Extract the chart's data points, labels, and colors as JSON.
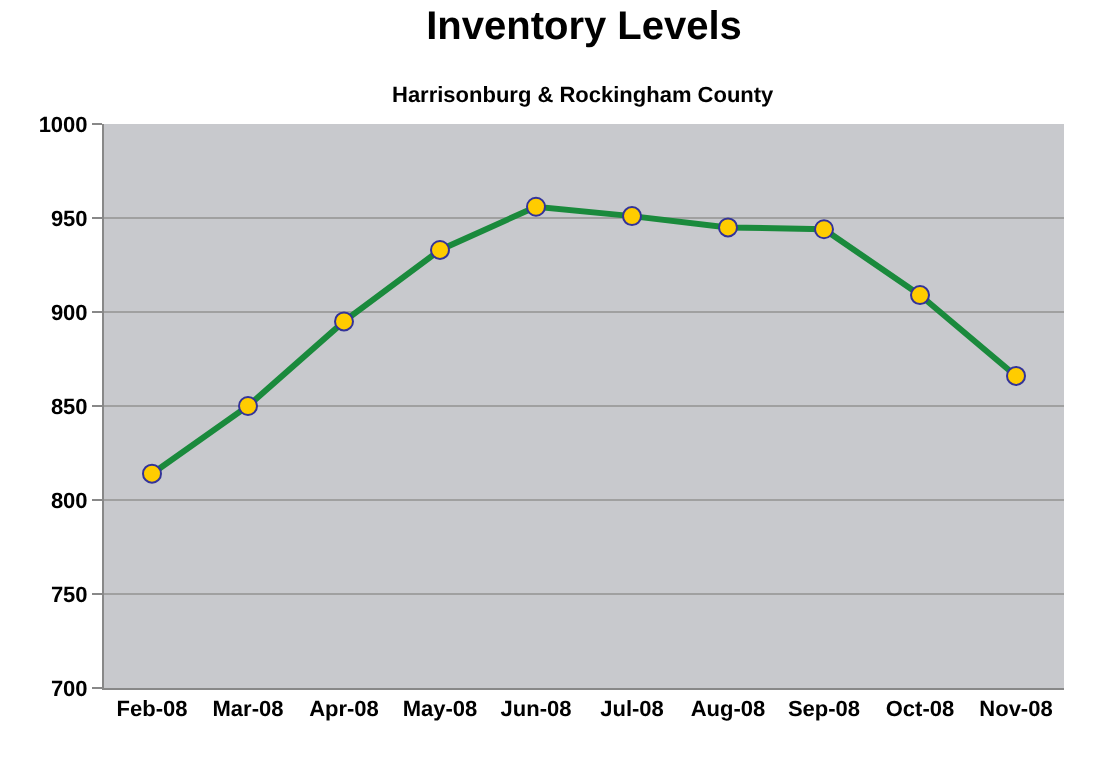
{
  "chart_data": {
    "type": "line",
    "title": "Inventory Levels",
    "subtitle": "Harrisonburg & Rockingham County",
    "categories": [
      "Feb-08",
      "Mar-08",
      "Apr-08",
      "May-08",
      "Jun-08",
      "Jul-08",
      "Aug-08",
      "Sep-08",
      "Oct-08",
      "Nov-08"
    ],
    "series": [
      {
        "color": "#1a8a3c",
        "values": [
          814,
          850,
          895,
          933,
          956,
          951,
          945,
          944,
          909,
          866
        ]
      }
    ],
    "ylim": [
      700,
      1000
    ],
    "yticks": [
      700,
      750,
      800,
      850,
      900,
      950,
      1000
    ],
    "grid": "y",
    "marker": "circle",
    "line_style": "solid",
    "legend": false
  }
}
